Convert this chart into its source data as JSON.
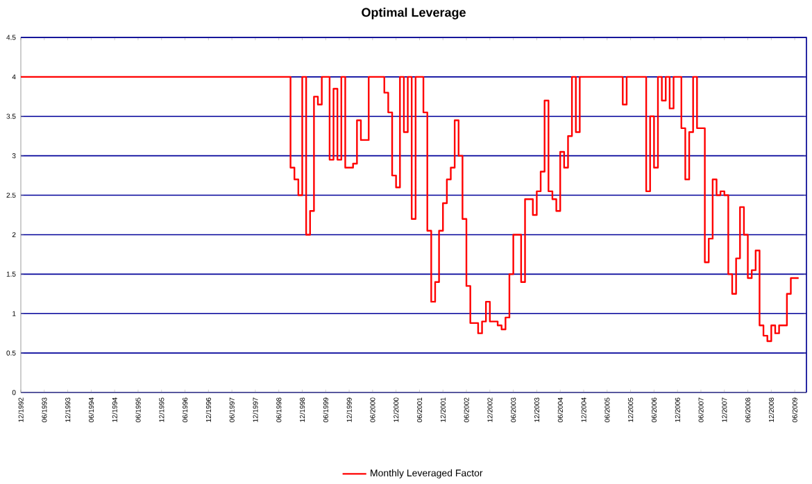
{
  "chart_data": {
    "type": "step",
    "title": "Optimal Leverage",
    "x": [
      "1992-12",
      "1998-08",
      "1998-09",
      "1998-10",
      "1998-11",
      "1998-12",
      "1999-01",
      "1999-02",
      "1999-03",
      "1999-04",
      "1999-05",
      "1999-07",
      "1999-08",
      "1999-09",
      "1999-10",
      "1999-11",
      "2000-01",
      "2000-02",
      "2000-03",
      "2000-05",
      "2000-09",
      "2000-10",
      "2000-11",
      "2000-12",
      "2001-01",
      "2001-02",
      "2001-03",
      "2001-04",
      "2001-05",
      "2001-07",
      "2001-08",
      "2001-09",
      "2001-10",
      "2001-11",
      "2001-12",
      "2002-01",
      "2002-02",
      "2002-03",
      "2002-04",
      "2002-05",
      "2002-06",
      "2002-07",
      "2002-08",
      "2002-09",
      "2002-10",
      "2002-11",
      "2002-12",
      "2003-02",
      "2003-03",
      "2003-04",
      "2003-05",
      "2003-06",
      "2003-07",
      "2003-08",
      "2003-09",
      "2003-10",
      "2003-11",
      "2003-12",
      "2004-01",
      "2004-02",
      "2004-03",
      "2004-04",
      "2004-05",
      "2004-06",
      "2004-07",
      "2004-08",
      "2004-09",
      "2004-10",
      "2004-11",
      "2005-09",
      "2005-10",
      "2005-11",
      "2006-04",
      "2006-05",
      "2006-06",
      "2006-07",
      "2006-08",
      "2006-09",
      "2006-10",
      "2006-11",
      "2007-01",
      "2007-02",
      "2007-03",
      "2007-04",
      "2007-05",
      "2007-06",
      "2007-07",
      "2007-08",
      "2007-09",
      "2007-10",
      "2007-11",
      "2007-12",
      "2008-01",
      "2008-02",
      "2008-03",
      "2008-04",
      "2008-05",
      "2008-06",
      "2008-07",
      "2008-08",
      "2008-09",
      "2008-10",
      "2008-11",
      "2008-12",
      "2009-01",
      "2009-02",
      "2009-03",
      "2009-04",
      "2009-05",
      "2009-06",
      "2009-07"
    ],
    "series": [
      {
        "name": "Monthly Leveraged Factor",
        "color": "#ff0000",
        "values": [
          4.0,
          4.0,
          2.85,
          2.7,
          2.5,
          4.0,
          2.0,
          2.3,
          3.75,
          3.65,
          4.0,
          2.95,
          3.85,
          2.95,
          4.0,
          2.85,
          2.9,
          3.45,
          3.2,
          4.0,
          3.8,
          3.55,
          2.75,
          2.6,
          4.0,
          3.3,
          4.0,
          2.2,
          4.0,
          3.55,
          2.05,
          1.15,
          1.4,
          2.05,
          2.4,
          2.7,
          2.85,
          3.45,
          3.0,
          2.2,
          1.35,
          0.88,
          0.88,
          0.75,
          0.9,
          1.15,
          0.9,
          0.85,
          0.8,
          0.95,
          1.5,
          2.0,
          2.0,
          1.4,
          2.45,
          2.45,
          2.25,
          2.55,
          2.8,
          3.7,
          2.55,
          2.45,
          2.3,
          3.05,
          2.85,
          3.25,
          4.0,
          3.3,
          4.0,
          4.0,
          3.65,
          4.0,
          2.55,
          3.5,
          2.85,
          4.0,
          3.7,
          4.0,
          3.6,
          4.0,
          3.35,
          2.7,
          3.3,
          4.0,
          3.35,
          3.35,
          1.65,
          1.95,
          2.7,
          2.5,
          2.55,
          2.5,
          1.5,
          1.25,
          1.7,
          2.35,
          2.0,
          1.45,
          1.55,
          1.8,
          0.85,
          0.72,
          0.65,
          0.85,
          0.75,
          0.85,
          0.85,
          1.25,
          1.45,
          1.45,
          1.45
        ]
      }
    ],
    "xlim": [
      "1992-12",
      "2009-09"
    ],
    "xticks": [
      {
        "value": "1992-12",
        "label": "12/1992"
      },
      {
        "value": "1993-06",
        "label": "06/1993"
      },
      {
        "value": "1993-12",
        "label": "12/1993"
      },
      {
        "value": "1994-06",
        "label": "06/1994"
      },
      {
        "value": "1994-12",
        "label": "12/1994"
      },
      {
        "value": "1995-06",
        "label": "06/1995"
      },
      {
        "value": "1995-12",
        "label": "12/1995"
      },
      {
        "value": "1996-06",
        "label": "06/1996"
      },
      {
        "value": "1996-12",
        "label": "12/1996"
      },
      {
        "value": "1997-06",
        "label": "06/1997"
      },
      {
        "value": "1997-12",
        "label": "12/1997"
      },
      {
        "value": "1998-06",
        "label": "06/1998"
      },
      {
        "value": "1998-12",
        "label": "12/1998"
      },
      {
        "value": "1999-06",
        "label": "06/1999"
      },
      {
        "value": "1999-12",
        "label": "12/1999"
      },
      {
        "value": "2000-06",
        "label": "06/2000"
      },
      {
        "value": "2000-12",
        "label": "12/2000"
      },
      {
        "value": "2001-06",
        "label": "06/2001"
      },
      {
        "value": "2001-12",
        "label": "12/2001"
      },
      {
        "value": "2002-06",
        "label": "06/2002"
      },
      {
        "value": "2002-12",
        "label": "12/2002"
      },
      {
        "value": "2003-06",
        "label": "06/2003"
      },
      {
        "value": "2003-12",
        "label": "12/2003"
      },
      {
        "value": "2004-06",
        "label": "06/2004"
      },
      {
        "value": "2004-12",
        "label": "12/2004"
      },
      {
        "value": "2005-06",
        "label": "06/2005"
      },
      {
        "value": "2005-12",
        "label": "12/2005"
      },
      {
        "value": "2006-06",
        "label": "06/2006"
      },
      {
        "value": "2006-12",
        "label": "12/2006"
      },
      {
        "value": "2007-06",
        "label": "06/2007"
      },
      {
        "value": "2007-12",
        "label": "12/2007"
      },
      {
        "value": "2008-06",
        "label": "06/2008"
      },
      {
        "value": "2008-12",
        "label": "12/2008"
      },
      {
        "value": "2009-06",
        "label": "06/2009"
      }
    ],
    "ylim": [
      0,
      4.5
    ],
    "yticks": [
      0,
      0.5,
      1,
      1.5,
      2,
      2.5,
      3,
      3.5,
      4,
      4.5
    ],
    "grid": "y",
    "legend": "bottom",
    "line_style": "solid",
    "marker": "none"
  }
}
